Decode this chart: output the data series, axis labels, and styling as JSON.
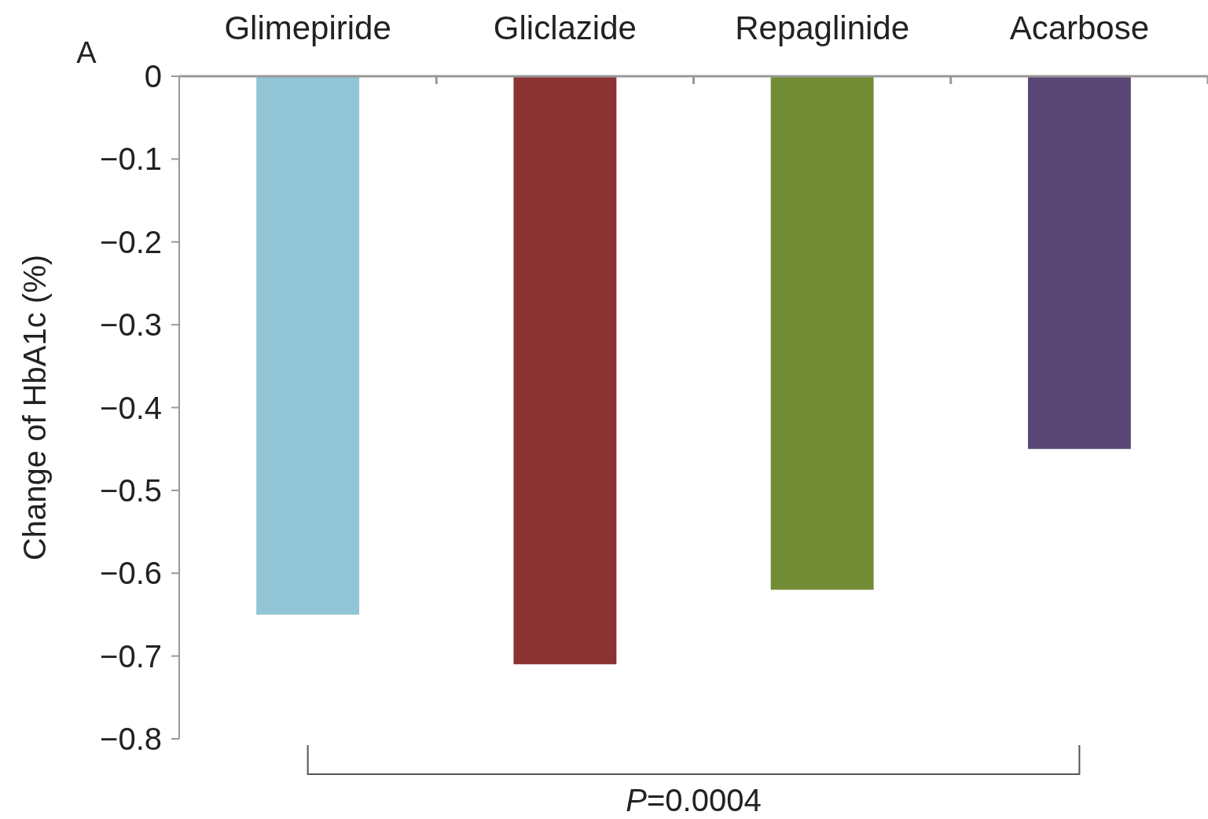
{
  "chart_data": {
    "type": "bar",
    "ylabel": "Change of HbA1c (%)",
    "categories": [
      "Glimepiride",
      "Gliclazide",
      "Repaglinide",
      "Acarbose"
    ],
    "values": [
      -0.65,
      -0.71,
      -0.62,
      -0.45
    ],
    "colors": [
      "#92c5d6",
      "#8b3333",
      "#738c36",
      "#5b4775"
    ],
    "ylim": [
      -0.8,
      0
    ],
    "yticks": [
      0,
      {
        "value": -0.1,
        "label": "−0.1"
      },
      {
        "value": -0.2,
        "label": "−0.2"
      },
      {
        "value": -0.3,
        "label": "−0.3"
      },
      {
        "value": -0.4,
        "label": "−0.4"
      },
      {
        "value": -0.5,
        "label": "−0.5"
      },
      {
        "value": -0.6,
        "label": "−0.6"
      },
      {
        "value": -0.7,
        "label": "−0.7"
      },
      {
        "value": -0.8,
        "label": "−0.8"
      }
    ],
    "grid": false,
    "annotations": [
      "A",
      "P=0.0004"
    ]
  }
}
